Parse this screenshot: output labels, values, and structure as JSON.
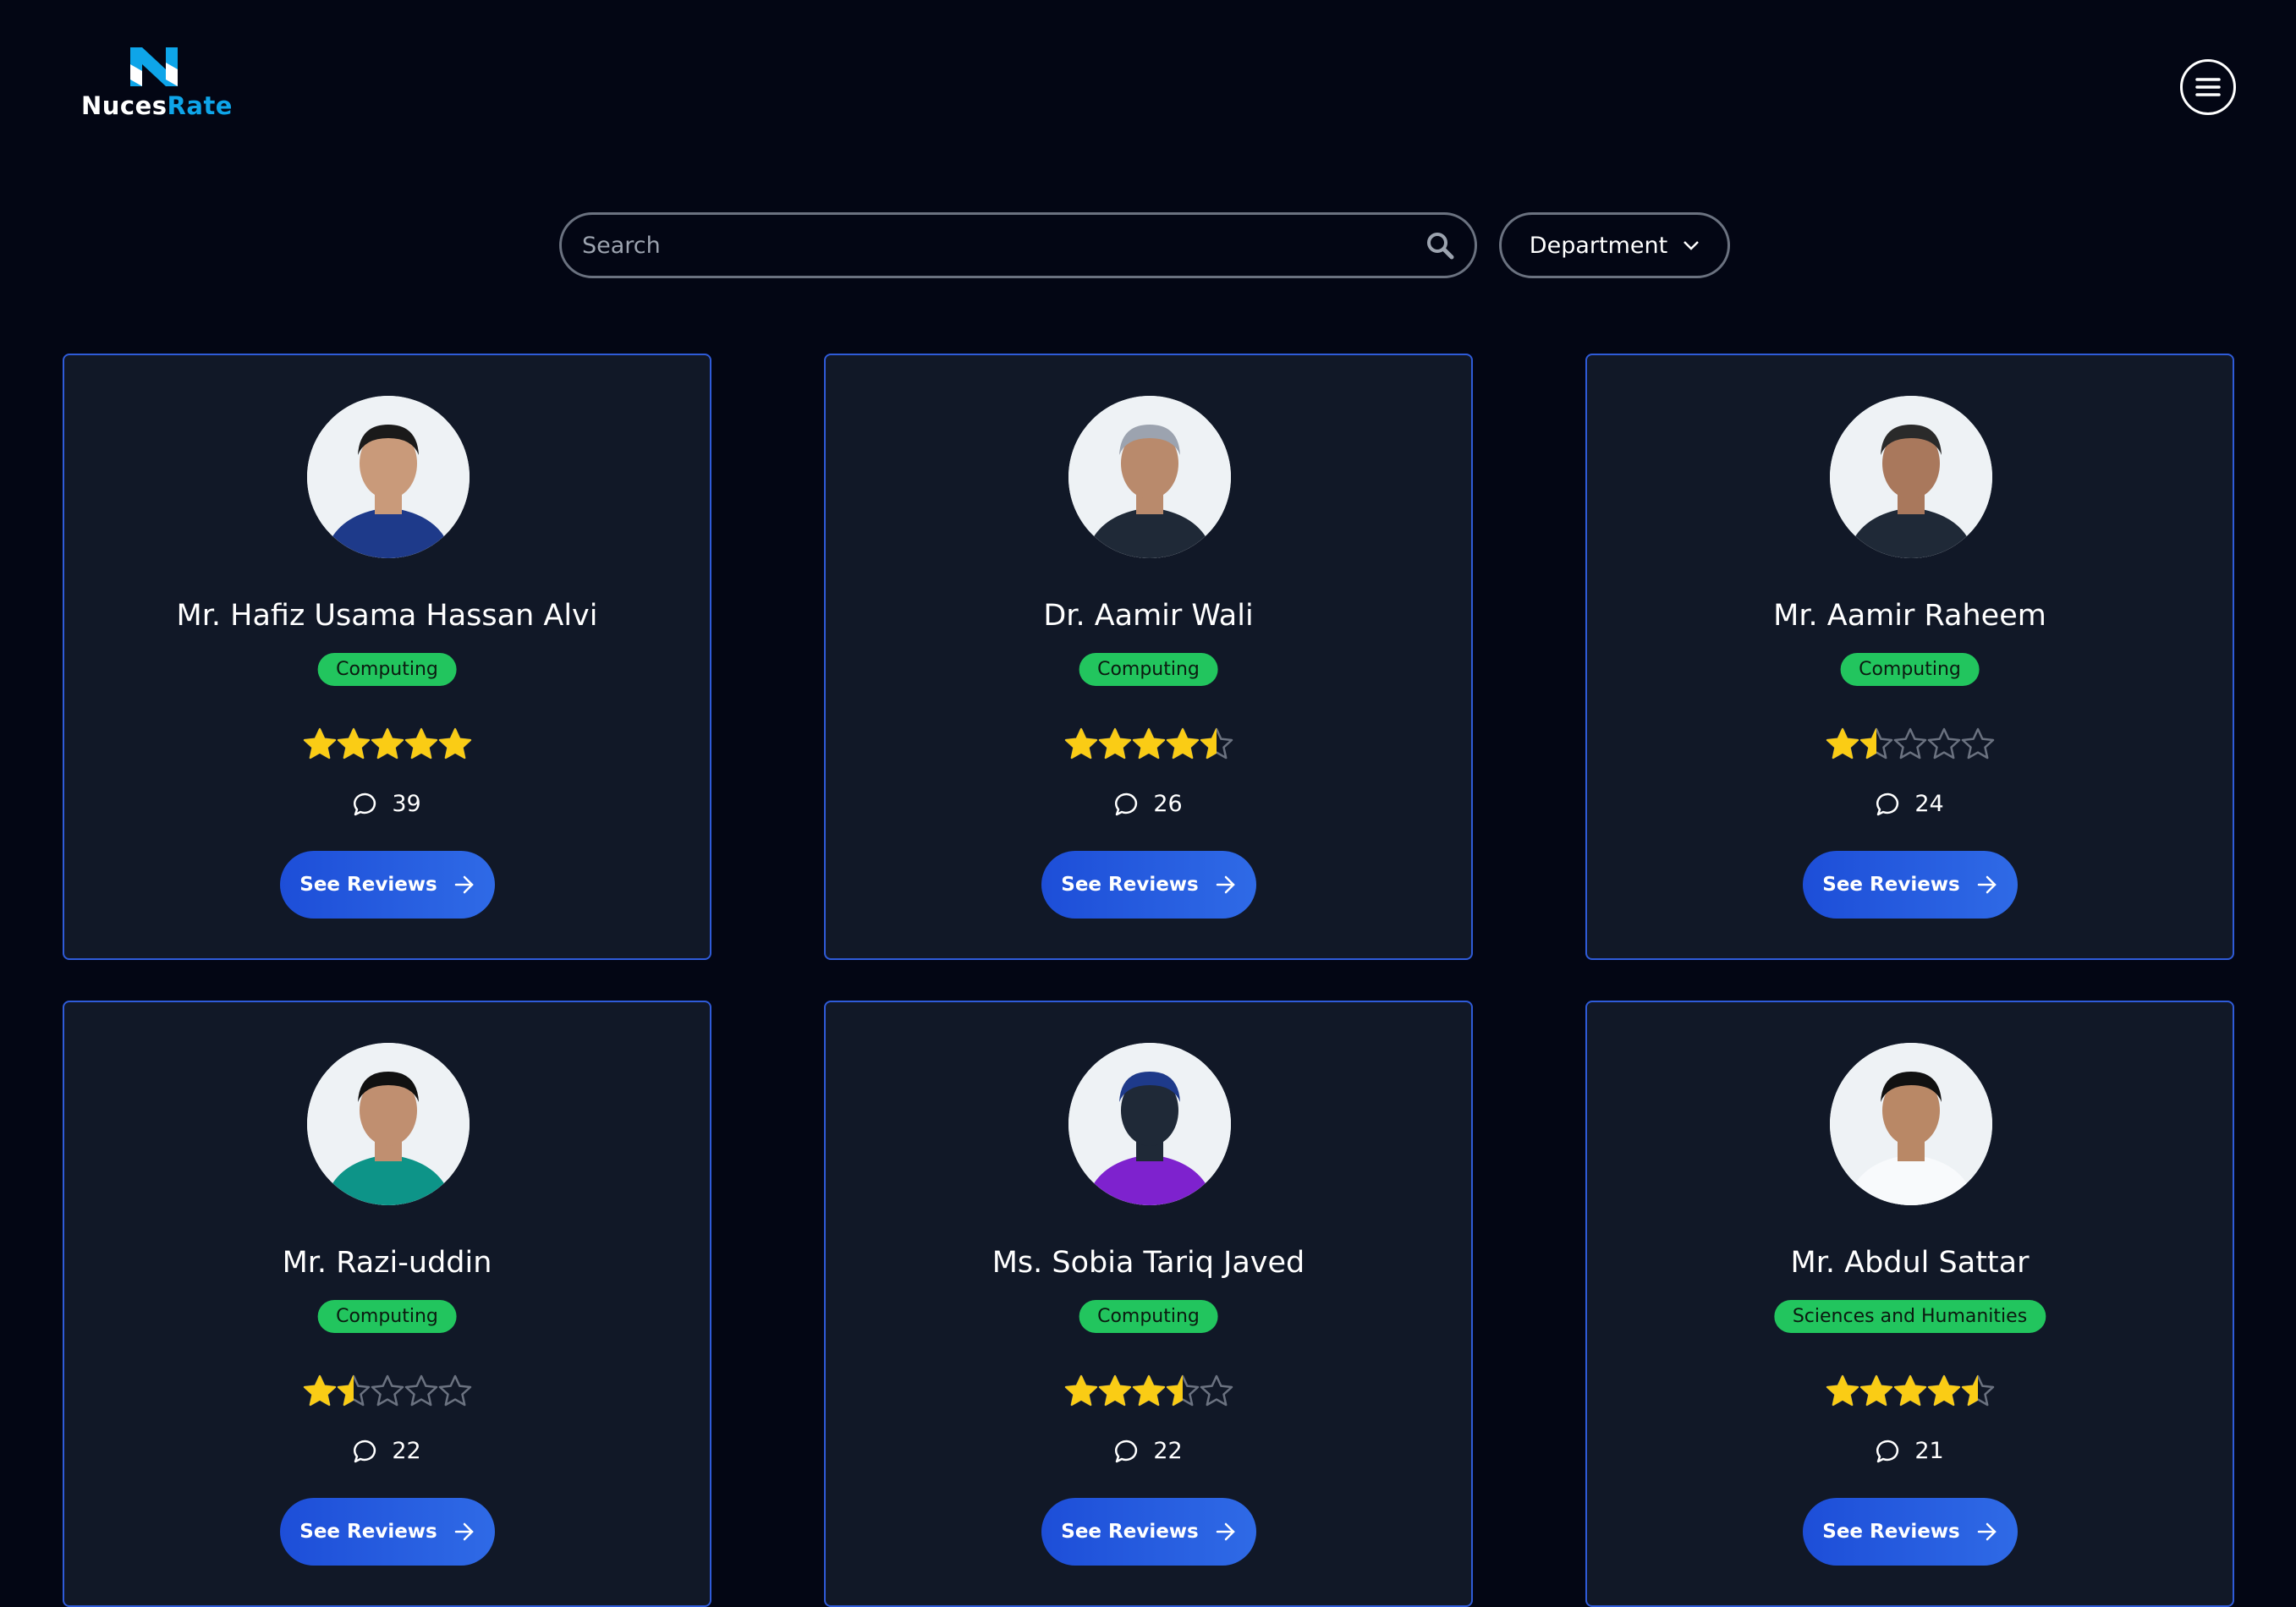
{
  "brand": {
    "part1": "Nuces",
    "part2": "Rate",
    "logo_icon": "n-logo-icon"
  },
  "header": {
    "menu_icon": "hamburger-menu-icon"
  },
  "search": {
    "placeholder": "Search",
    "value": "",
    "icon": "search-icon"
  },
  "department": {
    "label": "Department",
    "icon": "chevron-down-icon"
  },
  "colors": {
    "background": "#030614",
    "card": "#111827",
    "card_border": "#2f5bd8",
    "badge": "#22c55e",
    "button": "#2563eb",
    "star": "#facc15",
    "star_empty": "#6b7280",
    "brand_accent": "#0ea5e9"
  },
  "teachers": [
    {
      "name": "Mr. Hafiz Usama Hassan Alvi",
      "department": "Computing",
      "rating": 5,
      "reviews": "39",
      "button": "See Reviews"
    },
    {
      "name": "Dr. Aamir Wali",
      "department": "Computing",
      "rating": 4.5,
      "reviews": "26",
      "button": "See Reviews"
    },
    {
      "name": "Mr. Aamir Raheem",
      "department": "Computing",
      "rating": 1.5,
      "reviews": "24",
      "button": "See Reviews"
    },
    {
      "name": "Mr. Razi-uddin",
      "department": "Computing",
      "rating": 1.5,
      "reviews": "22",
      "button": "See Reviews"
    },
    {
      "name": "Ms. Sobia Tariq Javed",
      "department": "Computing",
      "rating": 3.5,
      "reviews": "22",
      "button": "See Reviews"
    },
    {
      "name": "Mr. Abdul Sattar",
      "department": "Sciences and Humanities",
      "rating": 4.5,
      "reviews": "21",
      "button": "See Reviews"
    }
  ]
}
